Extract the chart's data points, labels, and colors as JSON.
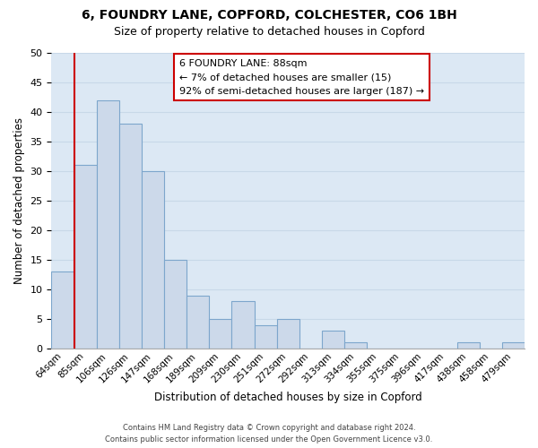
{
  "title": "6, FOUNDRY LANE, COPFORD, COLCHESTER, CO6 1BH",
  "subtitle": "Size of property relative to detached houses in Copford",
  "xlabel": "Distribution of detached houses by size in Copford",
  "ylabel": "Number of detached properties",
  "bar_labels": [
    "64sqm",
    "85sqm",
    "106sqm",
    "126sqm",
    "147sqm",
    "168sqm",
    "189sqm",
    "209sqm",
    "230sqm",
    "251sqm",
    "272sqm",
    "292sqm",
    "313sqm",
    "334sqm",
    "355sqm",
    "375sqm",
    "396sqm",
    "417sqm",
    "438sqm",
    "458sqm",
    "479sqm"
  ],
  "bar_heights": [
    13,
    31,
    42,
    38,
    30,
    15,
    9,
    5,
    8,
    4,
    5,
    0,
    3,
    1,
    0,
    0,
    0,
    0,
    1,
    0,
    1
  ],
  "bar_color": "#ccd9ea",
  "bar_edge_color": "#7da6cc",
  "vline_color": "#cc0000",
  "ylim": [
    0,
    50
  ],
  "yticks": [
    0,
    5,
    10,
    15,
    20,
    25,
    30,
    35,
    40,
    45,
    50
  ],
  "annotation_title": "6 FOUNDRY LANE: 88sqm",
  "annotation_line1": "← 7% of detached houses are smaller (15)",
  "annotation_line2": "92% of semi-detached houses are larger (187) →",
  "annotation_box_color": "#ffffff",
  "annotation_box_edge": "#cc0000",
  "footer_line1": "Contains HM Land Registry data © Crown copyright and database right 2024.",
  "footer_line2": "Contains public sector information licensed under the Open Government Licence v3.0.",
  "grid_color": "#c8d8e8",
  "background_color": "#dce8f4"
}
